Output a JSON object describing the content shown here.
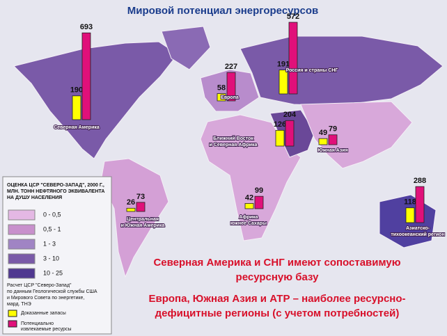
{
  "title": "Мировой потенциал энергоресурсов",
  "series": [
    {
      "name": [
        "Доказанные запасы"
      ],
      "color": "#ffff00"
    },
    {
      "name": [
        "Потенциально",
        "извлекаемые ресурсы"
      ],
      "color": "#e0107a"
    }
  ],
  "regions": [
    {
      "label": [
        "Северная Америка"
      ],
      "values": [
        190,
        693
      ]
    },
    {
      "label": [
        "Европа"
      ],
      "values": [
        58,
        227
      ]
    },
    {
      "label": [
        "Россия и страны СНГ"
      ],
      "values": [
        191,
        572
      ]
    },
    {
      "label": [
        "Ближний Восток",
        "и Северная Африка"
      ],
      "values": [
        126,
        204
      ]
    },
    {
      "label": [
        "Южная Азия"
      ],
      "values": [
        49,
        79
      ]
    },
    {
      "label": [
        "Центральная",
        "и Южная Америка"
      ],
      "values": [
        26,
        73
      ]
    },
    {
      "label": [
        "Африка",
        "южнее Сахары"
      ],
      "values": [
        42,
        99
      ]
    },
    {
      "label": [
        "Азиатско-",
        "тихоокеанский регион"
      ],
      "values": [
        118,
        288
      ]
    }
  ],
  "legend": {
    "title": [
      "ОЦЕНКА ЦСР \"СЕВЕРО-ЗАПАД\", 2000 Г.,",
      "МЛН. ТОНН НЕФТЯНОГО ЭКВИВАЛЕНТА",
      "НА ДУШУ НАСЕЛЕНИЯ"
    ],
    "classes": [
      {
        "label": "0 - 0,5",
        "color": "#e4b8e4"
      },
      {
        "label": "0,5 - 1",
        "color": "#c890cc"
      },
      {
        "label": "1 - 3",
        "color": "#a084c4"
      },
      {
        "label": "3 - 10",
        "color": "#7a5aa8"
      },
      {
        "label": "10 - 25",
        "color": "#503890"
      }
    ],
    "source": [
      "Расчет ЦСР \"Северо-Запад\"",
      "по данным Геологической службы США",
      "и Мирового Совета по энергетике,",
      "мард. ТНЭ"
    ]
  },
  "notes": [
    [
      "Северная Америка и СНГ имеют сопоставимую",
      "ресурсную базу"
    ],
    [
      "Европа, Южная Азия и АТР – наиболее ресурсно-",
      "дефицитные регионы (с учетом потребностей)"
    ]
  ]
}
